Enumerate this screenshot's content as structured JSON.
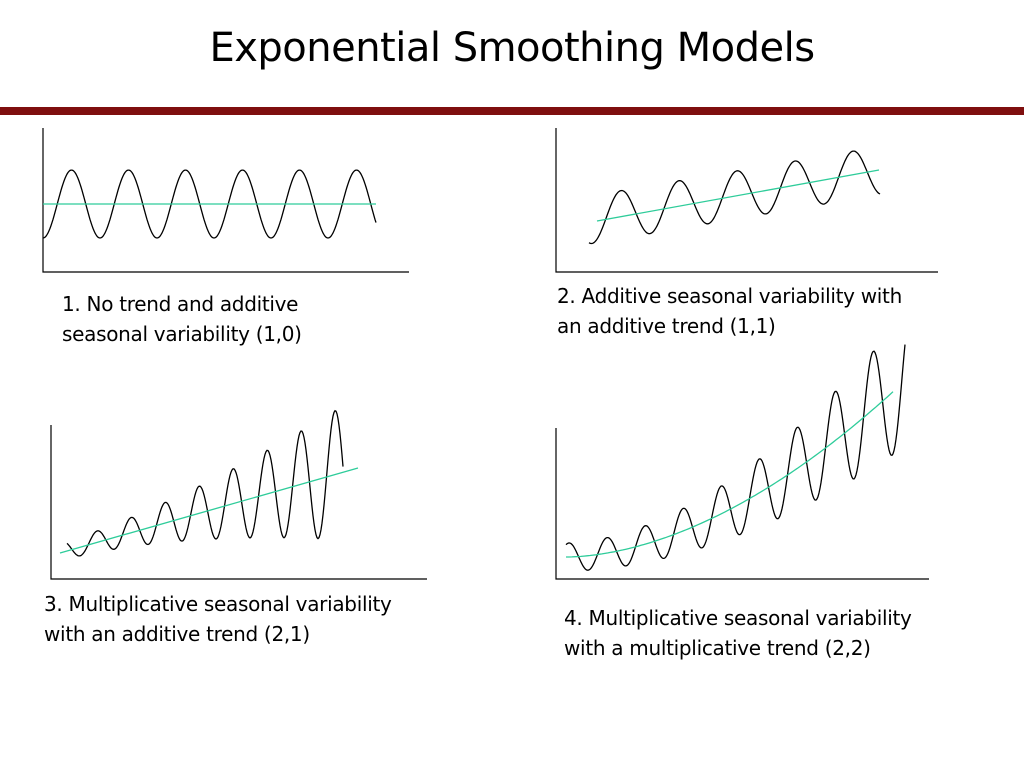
{
  "slide": {
    "title": "Exponential Smoothing Models",
    "rule_color": "#7f0f0f"
  },
  "colors": {
    "series": "#000000",
    "trend": "#2ecc9a",
    "axis": "#000000"
  },
  "panels": [
    {
      "caption_lines": [
        "1.  No trend and additive",
        "seasonal variability (1,0)"
      ],
      "trend": "none",
      "seasonality": "additive"
    },
    {
      "caption_lines": [
        "2. Additive seasonal variability with",
        "an additive trend (1,1)"
      ],
      "trend": "additive",
      "seasonality": "additive"
    },
    {
      "caption_lines": [
        "3. Multiplicative seasonal variability",
        "with an additive trend (2,1)"
      ],
      "trend": "additive",
      "seasonality": "multiplicative"
    },
    {
      "caption_lines": [
        "4. Multiplicative seasonal variability",
        "with a multiplicative trend (2,2)"
      ],
      "trend": "multiplicative",
      "seasonality": "multiplicative"
    }
  ]
}
